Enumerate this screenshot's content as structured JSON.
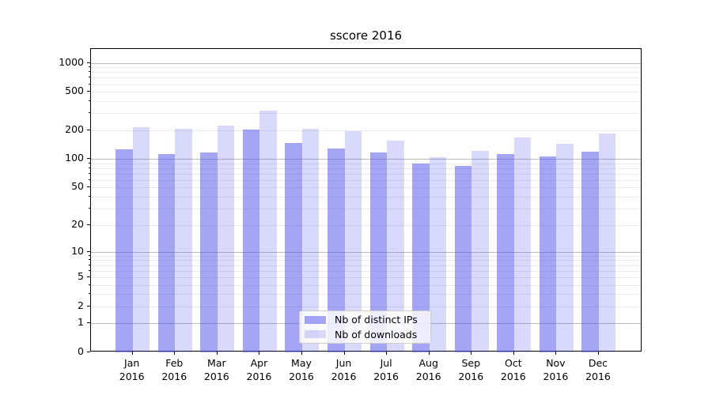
{
  "chart_data": {
    "type": "bar",
    "title": "sscore 2016",
    "year": "2016",
    "categories": [
      "Jan",
      "Feb",
      "Mar",
      "Apr",
      "May",
      "Jun",
      "Jul",
      "Aug",
      "Sep",
      "Oct",
      "Nov",
      "Dec"
    ],
    "series": [
      {
        "name": "Nb of distinct IPs",
        "color": "rgba(83,83,237,0.52)",
        "values": [
          125,
          113,
          118,
          203,
          147,
          129,
          116,
          90,
          84,
          112,
          107,
          120
        ]
      },
      {
        "name": "Nb of downloads",
        "color": "rgba(83,83,237,0.22)",
        "values": [
          216,
          208,
          223,
          317,
          205,
          196,
          156,
          104,
          122,
          167,
          144,
          185
        ]
      }
    ],
    "y_axis": {
      "scale": "symlog",
      "ticks": [
        0,
        1,
        2,
        5,
        10,
        20,
        50,
        100,
        200,
        500,
        1000
      ],
      "minor_multiples": [
        2,
        3,
        4,
        5,
        6,
        7,
        8,
        9
      ],
      "ylim": [
        0,
        1400
      ]
    },
    "grid": {
      "major_color": "#bbbbbb",
      "minor_color": "#eaeaea"
    },
    "legend": {
      "position": "lower-center-inside"
    }
  }
}
